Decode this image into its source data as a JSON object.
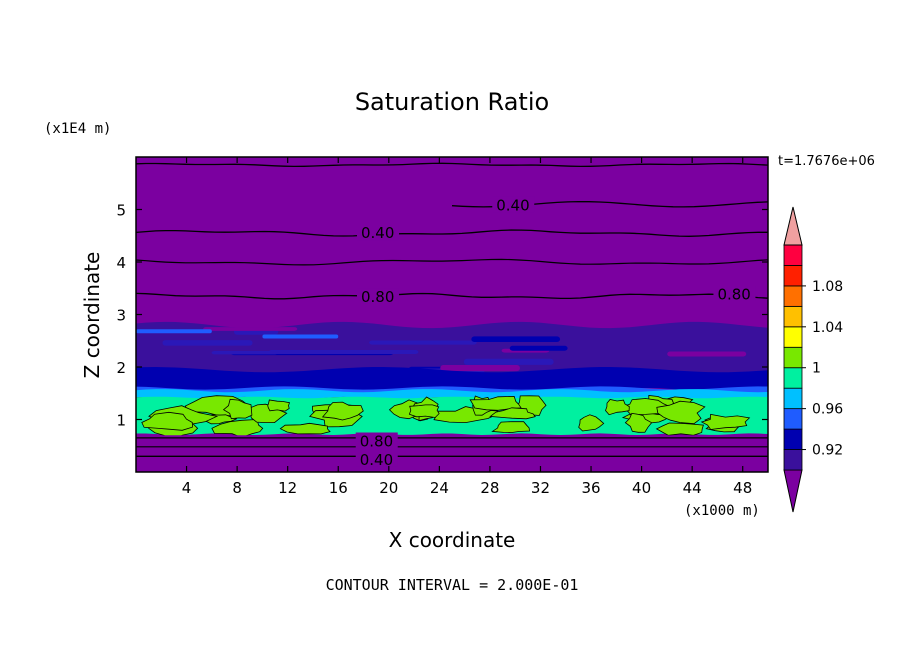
{
  "chart_data": {
    "type": "contour",
    "title": "Saturation Ratio",
    "xlabel": "X coordinate",
    "ylabel": "Z coordinate",
    "x_unit": "(x1000 m)",
    "z_unit": "(x1E4 m)",
    "time_label": "t=1.7676e+06",
    "contour_interval_text": "CONTOUR INTERVAL = 2.000E-01",
    "xlim": [
      0,
      50
    ],
    "ylim": [
      0,
      6
    ],
    "x_ticks": [
      "4",
      "8",
      "12",
      "16",
      "20",
      "24",
      "28",
      "32",
      "36",
      "40",
      "44",
      "48"
    ],
    "y_ticks": [
      "1",
      "2",
      "3",
      "4",
      "5"
    ],
    "colorbar": {
      "labels": [
        "0.92",
        "0.96",
        "1",
        "1.04",
        "1.08"
      ],
      "colors": [
        "#7b00a0",
        "#3a109c",
        "#0000b0",
        "#1f5cff",
        "#00c0ff",
        "#00f0a0",
        "#78e800",
        "#ffff00",
        "#ffc000",
        "#ff7000",
        "#ff2000",
        "#ff0040",
        "#f0a0a0"
      ]
    },
    "contour_labels": [
      "0.40",
      "0.40",
      "0.80",
      "0.80",
      "0.80",
      "0.40"
    ],
    "regions": [
      {
        "name": "upper layer",
        "z_range": [
          3.0,
          6.0
        ],
        "fill": "#7b00a0"
      },
      {
        "name": "transition layer",
        "z_range": [
          1.8,
          2.8
        ],
        "fill": "#3a109c"
      },
      {
        "name": "dark blue band",
        "z_range": [
          1.55,
          1.95
        ],
        "fill": "#0000b0"
      },
      {
        "name": "cyan band",
        "z_range": [
          1.45,
          1.6
        ],
        "fill": "#00c0ff"
      },
      {
        "name": "near-saturated layer",
        "z_range": [
          0.7,
          1.5
        ],
        "fill": "#00f0a0"
      },
      {
        "name": "supersaturated patches",
        "z_range": [
          0.75,
          1.35
        ],
        "fill": "#78e800"
      },
      {
        "name": "lower layer",
        "z_range": [
          0.0,
          0.7
        ],
        "fill": "#7b00a0"
      }
    ],
    "contour_lines": [
      {
        "label": "0.40",
        "z": 4.55
      },
      {
        "label": "0.80",
        "z": 3.35
      },
      {
        "label": "0.40",
        "z": 5.1,
        "x_range": [
          25,
          50
        ]
      },
      {
        "label": "0.80",
        "z": 0.65
      },
      {
        "label": "0.40",
        "z": 0.3
      }
    ]
  }
}
